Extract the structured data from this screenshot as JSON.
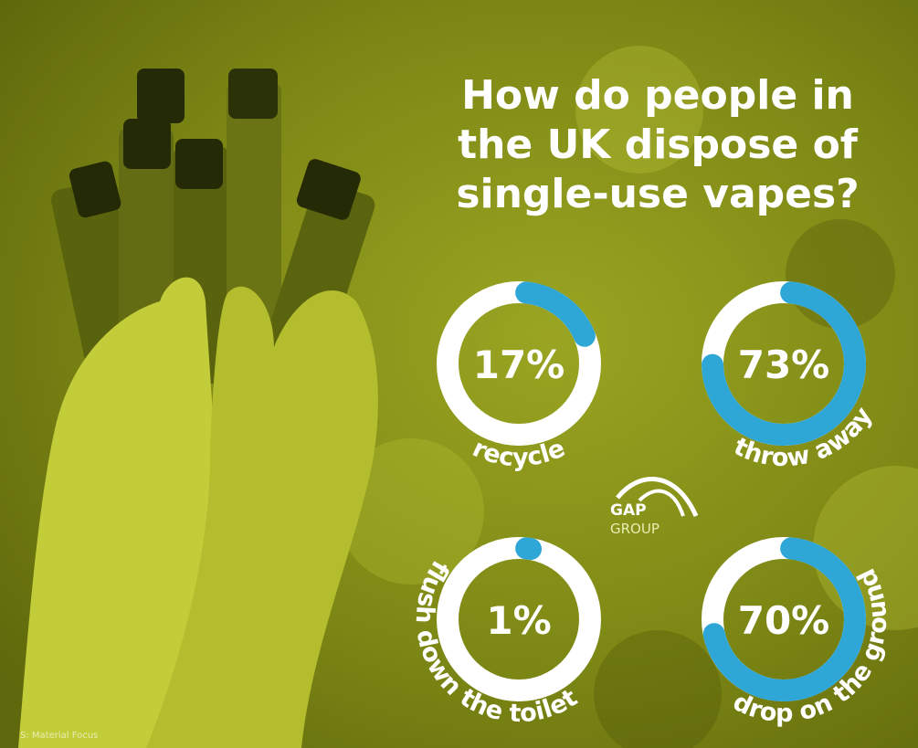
{
  "chart_data": {
    "type": "donut",
    "title": "How do people in the UK dispose of single-use vapes?",
    "categories": [
      "recycle",
      "throw away",
      "flush down the toilet",
      "drop on the ground"
    ],
    "values": [
      17,
      73,
      1,
      70
    ],
    "value_labels": [
      "17%",
      "73%",
      "1%",
      "70%"
    ],
    "color": "#2ea6d6",
    "track_color": "#ffffff"
  },
  "logo": {
    "line1": "GAP",
    "line2": "GROUP"
  },
  "source": "S: Material Focus"
}
